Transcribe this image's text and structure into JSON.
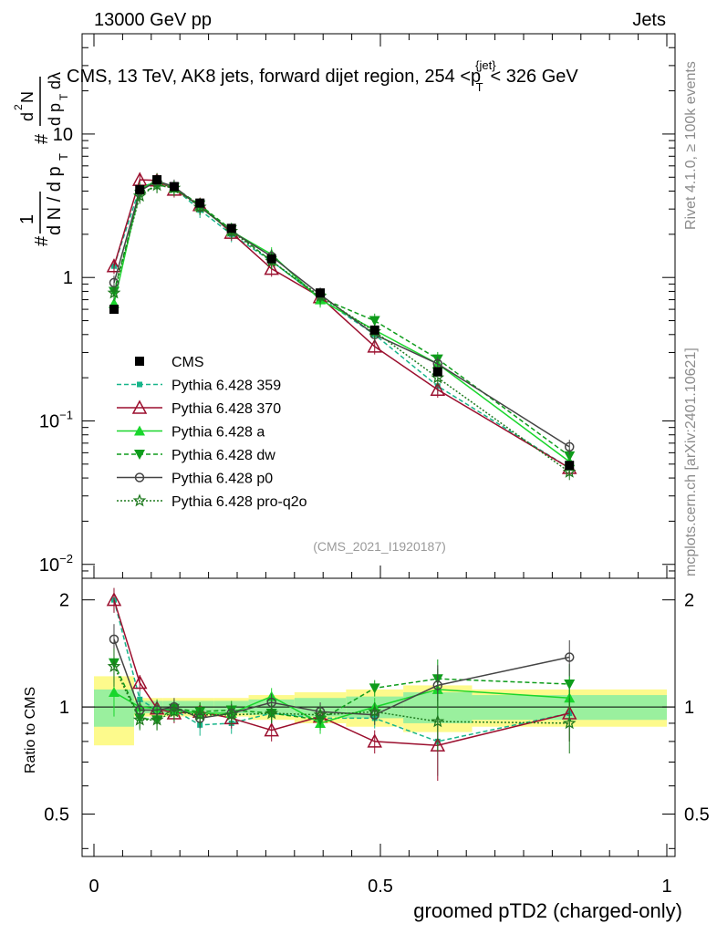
{
  "header": {
    "left": "13000 GeV pp",
    "right": "Jets"
  },
  "side_labels": {
    "rivet": "Rivet 4.1.0, ≥ 100k events",
    "mcplots": "mcplots.cern.ch [arXiv:2401.10621]"
  },
  "watermark": "(CMS_2021_I1920187)",
  "chart_data": {
    "type": "line",
    "title_parts": {
      "main": "CMS, 13 TeV, AK8 jets, forward dijet region, 254 <p",
      "sup": "{jet}",
      "sub": "T",
      "end": "< 326 GeV"
    },
    "ylabel": "1/N dN/dpT d²N/dpT dλ",
    "xlabel": "groomed pTD2 (charged-only)",
    "ratio_ylabel": "Ratio to CMS",
    "xlim": [
      0,
      1
    ],
    "ylim": [
      0.008,
      50
    ],
    "ratio_ylim": [
      0.38,
      2.3
    ],
    "x_ticks": [
      "0",
      "0.5",
      "1"
    ],
    "y_ticks": [
      {
        "value": 0.01,
        "base": "10",
        "exp": "−2"
      },
      {
        "value": 0.1,
        "base": "10",
        "exp": "−1"
      },
      {
        "value": 1,
        "base": "1",
        "exp": ""
      },
      {
        "value": 10,
        "base": "10",
        "exp": ""
      }
    ],
    "ratio_ticks": [
      "0.5",
      "1",
      "2"
    ],
    "x": [
      0.035,
      0.08,
      0.11,
      0.14,
      0.185,
      0.24,
      0.31,
      0.395,
      0.49,
      0.6,
      0.83
    ],
    "bin_edges": [
      0,
      0.07,
      0.09,
      0.12,
      0.16,
      0.21,
      0.27,
      0.35,
      0.44,
      0.54,
      0.66,
      1.0
    ],
    "data": {
      "name": "CMS",
      "values": [
        0.6,
        4.1,
        4.8,
        4.3,
        3.3,
        2.2,
        1.35,
        0.78,
        0.43,
        0.22,
        0.049
      ],
      "band_inner": [
        0.12,
        0.04,
        0.04,
        0.04,
        0.04,
        0.04,
        0.05,
        0.06,
        0.07,
        0.1,
        0.08
      ],
      "band_outer": [
        0.22,
        0.06,
        0.06,
        0.06,
        0.06,
        0.06,
        0.08,
        0.1,
        0.12,
        0.15,
        0.12
      ]
    },
    "series": [
      {
        "name": "Pythia 6.428 359",
        "color": "#17b58a",
        "dash": "5,3",
        "marker": "square",
        "values": [
          1.2,
          4.2,
          4.7,
          4.2,
          2.95,
          2.0,
          1.3,
          0.72,
          0.4,
          0.175,
          0.047
        ],
        "ratio": [
          2.0,
          1.05,
          0.98,
          0.98,
          0.89,
          0.9,
          0.96,
          0.93,
          0.93,
          0.8,
          0.96
        ]
      },
      {
        "name": "Pythia 6.428 370",
        "color": "#9b0f2e",
        "dash": "",
        "marker": "triangle-open",
        "values": [
          1.2,
          4.8,
          4.75,
          4.1,
          3.2,
          2.05,
          1.15,
          0.73,
          0.33,
          0.165,
          0.047
        ],
        "ratio": [
          2.0,
          1.17,
          0.99,
          0.96,
          0.97,
          0.93,
          0.86,
          0.94,
          0.8,
          0.78,
          0.96
        ]
      },
      {
        "name": "Pythia 6.428 a",
        "color": "#19d62c",
        "dash": "",
        "marker": "triangle",
        "values": [
          0.66,
          4.1,
          4.75,
          4.2,
          3.15,
          2.1,
          1.45,
          0.7,
          0.43,
          0.25,
          0.052
        ],
        "ratio": [
          1.1,
          1.0,
          0.99,
          0.98,
          0.96,
          0.96,
          1.07,
          0.9,
          1.0,
          1.12,
          1.06
        ]
      },
      {
        "name": "Pythia 6.428 dw",
        "color": "#0e9c1b",
        "dash": "5,3",
        "marker": "triangle-down",
        "values": [
          0.8,
          3.8,
          4.4,
          4.25,
          3.2,
          2.15,
          1.3,
          0.72,
          0.5,
          0.27,
          0.057
        ],
        "ratio": [
          1.33,
          0.93,
          0.92,
          0.99,
          0.97,
          0.98,
          0.96,
          0.92,
          1.13,
          1.2,
          1.16
        ]
      },
      {
        "name": "Pythia 6.428 p0",
        "color": "#444444",
        "dash": "",
        "marker": "circle-open",
        "values": [
          0.92,
          4.0,
          4.7,
          4.3,
          3.1,
          2.1,
          1.4,
          0.76,
          0.4,
          0.25,
          0.066
        ],
        "ratio": [
          1.55,
          0.98,
          0.98,
          1.0,
          0.93,
          0.96,
          1.03,
          0.97,
          0.95,
          1.15,
          1.38
        ]
      },
      {
        "name": "Pythia 6.428 pro-q2o",
        "color": "#1f7a1f",
        "dash": "2,2",
        "marker": "star",
        "values": [
          0.78,
          3.7,
          4.4,
          4.2,
          3.1,
          2.1,
          1.3,
          0.74,
          0.42,
          0.2,
          0.044
        ],
        "ratio": [
          1.3,
          0.92,
          0.92,
          0.97,
          0.95,
          0.95,
          0.96,
          0.95,
          0.97,
          0.91,
          0.9
        ]
      }
    ]
  }
}
